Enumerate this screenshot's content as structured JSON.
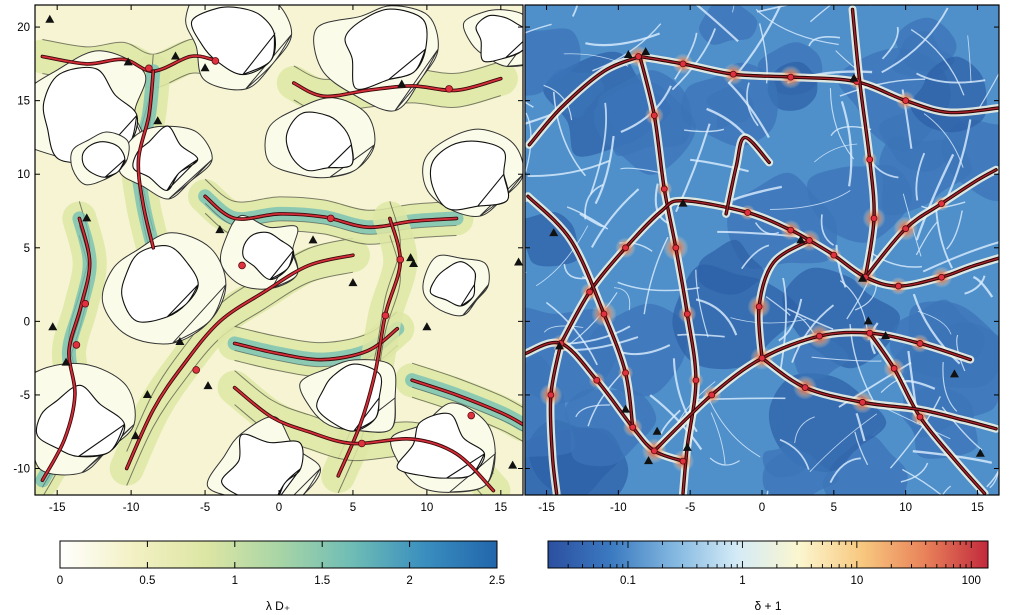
{
  "chart_data": [
    {
      "type": "heatmap",
      "panel": "left",
      "description_of_marks": "filled contour map of λD+ with black contour lines, red filament curves with red critical-point dots and black triangles",
      "xlim": [
        -16.5,
        16.5
      ],
      "ylim": [
        -11.8,
        21.5
      ],
      "x_ticks": [
        -15,
        -10,
        -5,
        0,
        5,
        10,
        15
      ],
      "y_ticks": [
        -10,
        -5,
        0,
        5,
        10,
        15,
        20
      ],
      "colorbar": {
        "label": "λ D₊",
        "scale": "linear",
        "range": [
          0,
          2.5
        ],
        "ticks": [
          0,
          0.5,
          1,
          1.5,
          2,
          2.5
        ],
        "colors": [
          "#ffffff",
          "#f3f1c4",
          "#dde6a4",
          "#a9d5a6",
          "#6fbdb5",
          "#3a8fbf",
          "#2166ac"
        ]
      },
      "filaments": [
        [
          [
            -16,
            -10.8
          ],
          [
            -14.5,
            -8
          ],
          [
            -13.8,
            -5
          ],
          [
            -14.2,
            -2
          ],
          [
            -13.4,
            1
          ],
          [
            -12.8,
            4
          ],
          [
            -13.5,
            7
          ]
        ],
        [
          [
            -16,
            18
          ],
          [
            -13,
            17.5
          ],
          [
            -10.5,
            17.8
          ],
          [
            -8.5,
            17
          ],
          [
            -6,
            18
          ],
          [
            -4.5,
            17.8
          ]
        ],
        [
          [
            -8.5,
            17
          ],
          [
            -8.8,
            14
          ],
          [
            -9.5,
            11
          ],
          [
            -9.2,
            8
          ],
          [
            -8.5,
            5
          ]
        ],
        [
          [
            -10.3,
            -10
          ],
          [
            -8.5,
            -6
          ],
          [
            -6.5,
            -3
          ],
          [
            -4,
            0
          ],
          [
            -1,
            2
          ],
          [
            2,
            3.8
          ],
          [
            5,
            4.5
          ]
        ],
        [
          [
            -5,
            8.5
          ],
          [
            -3,
            7
          ],
          [
            0,
            7.3
          ],
          [
            3,
            7.1
          ],
          [
            6,
            6.4
          ],
          [
            9,
            6.8
          ],
          [
            12,
            7
          ]
        ],
        [
          [
            1,
            16.2
          ],
          [
            3,
            15.3
          ],
          [
            6,
            15.7
          ],
          [
            9,
            16
          ],
          [
            12,
            15.7
          ],
          [
            15,
            16.5
          ]
        ],
        [
          [
            -3,
            -1.5
          ],
          [
            0,
            -2.2
          ],
          [
            3,
            -2.6
          ],
          [
            6,
            -2
          ],
          [
            8,
            -0.5
          ]
        ],
        [
          [
            4,
            -10.5
          ],
          [
            5.5,
            -7
          ],
          [
            6.5,
            -3.5
          ],
          [
            7.2,
            0.5
          ],
          [
            8.2,
            4
          ],
          [
            7.5,
            7
          ]
        ],
        [
          [
            9,
            -4
          ],
          [
            12,
            -5
          ],
          [
            15,
            -6.2
          ],
          [
            16.5,
            -7
          ]
        ],
        [
          [
            -3,
            -4.5
          ],
          [
            -0.5,
            -6.5
          ],
          [
            2,
            -7.5
          ],
          [
            5,
            -8.3
          ],
          [
            9,
            -8
          ],
          [
            12,
            -9
          ],
          [
            14.5,
            -11.5
          ]
        ]
      ],
      "critical_points": [
        [
          -13.1,
          1.2
        ],
        [
          -13.7,
          -1.6
        ],
        [
          -8.8,
          17.2
        ],
        [
          -4.3,
          17.7
        ],
        [
          -5.6,
          -3.3
        ],
        [
          -2.5,
          3.8
        ],
        [
          3.5,
          7.0
        ],
        [
          7.2,
          0.4
        ],
        [
          8.2,
          4.2
        ],
        [
          11.5,
          15.8
        ],
        [
          5.6,
          -8.3
        ],
        [
          13.0,
          -6.4
        ]
      ],
      "triangles": [
        [
          -15.5,
          20.5
        ],
        [
          -10.2,
          17.6
        ],
        [
          -7.0,
          18.0
        ],
        [
          -5.0,
          17.2
        ],
        [
          -8.2,
          13.6
        ],
        [
          -13.0,
          7.0
        ],
        [
          -15.3,
          -0.4
        ],
        [
          -14.4,
          -2.8
        ],
        [
          -9.7,
          -7.8
        ],
        [
          -6.7,
          -1.4
        ],
        [
          -4.8,
          -4.4
        ],
        [
          -4.0,
          6.2
        ],
        [
          2.3,
          5.5
        ],
        [
          5.0,
          2.6
        ],
        [
          8.9,
          4.3
        ],
        [
          10.0,
          -0.4
        ],
        [
          8.3,
          16.1
        ],
        [
          16.2,
          4.0
        ],
        [
          15.8,
          -9.8
        ],
        [
          9.1,
          3.9
        ],
        [
          -8.9,
          -5.0
        ]
      ]
    },
    {
      "type": "heatmap",
      "panel": "right",
      "description_of_marks": "density field δ+1 (blue voids, white walls, red filament nodes) with red-outlined filament curves, dots and black triangles",
      "xlim": [
        -16.5,
        16.5
      ],
      "ylim": [
        -11.8,
        21.5
      ],
      "x_ticks": [
        -15,
        -10,
        -5,
        0,
        5,
        10,
        15
      ],
      "y_ticks": [
        -10,
        -5,
        0,
        5,
        10,
        15,
        20
      ],
      "colorbar": {
        "label": "δ + 1",
        "scale": "log",
        "range": [
          0.02,
          140
        ],
        "ticks": [
          0.1,
          1,
          10,
          100
        ],
        "tick_labels": [
          "0.1",
          "1",
          "10",
          "100"
        ],
        "colors": [
          "#2c4fa0",
          "#3b7ac0",
          "#82b7e0",
          "#d4ebf7",
          "#fbf6cf",
          "#f8c87f",
          "#e9825a",
          "#c2293c"
        ]
      },
      "filaments": [
        [
          [
            -16.2,
            12
          ],
          [
            -14,
            14.5
          ],
          [
            -11,
            17
          ],
          [
            -8.5,
            18
          ]
        ],
        [
          [
            -8.5,
            18
          ],
          [
            -5.5,
            17.5
          ],
          [
            -2,
            16.8
          ],
          [
            2,
            16.6
          ],
          [
            6.5,
            16.3
          ],
          [
            10,
            15
          ],
          [
            13,
            14.2
          ],
          [
            16.5,
            14.5
          ]
        ],
        [
          [
            -8.5,
            18
          ],
          [
            -7.5,
            14
          ],
          [
            -6.8,
            9
          ],
          [
            -6,
            5
          ],
          [
            -5.2,
            0.5
          ],
          [
            -4.6,
            -4
          ],
          [
            -5.2,
            -8.5
          ],
          [
            -5.5,
            -11.7
          ]
        ],
        [
          [
            -14,
            -1.5
          ],
          [
            -12,
            2
          ],
          [
            -9.5,
            5
          ],
          [
            -7,
            7.5
          ],
          [
            -5.5,
            8.2
          ],
          [
            -1,
            7.4
          ],
          [
            2,
            6.2
          ],
          [
            3.3,
            5.5
          ]
        ],
        [
          [
            3.3,
            5.5
          ],
          [
            5,
            4.5
          ],
          [
            7.2,
            3
          ],
          [
            9.5,
            2.4
          ],
          [
            12.5,
            3
          ],
          [
            14.5,
            3.7
          ],
          [
            16.5,
            4.3
          ]
        ],
        [
          [
            7.2,
            3
          ],
          [
            7.8,
            7
          ],
          [
            7.5,
            11
          ],
          [
            6.8,
            16.3
          ],
          [
            6.3,
            21.2
          ]
        ],
        [
          [
            -16.5,
            -2.2
          ],
          [
            -14,
            -1.5
          ],
          [
            -11.5,
            -4
          ],
          [
            -9,
            -7.2
          ],
          [
            -7.5,
            -8.8
          ],
          [
            -5.5,
            -9.5
          ]
        ],
        [
          [
            -14,
            -1.5
          ],
          [
            -14.7,
            -5
          ],
          [
            -14.6,
            -9
          ],
          [
            -14.3,
            -11.7
          ]
        ],
        [
          [
            -7.5,
            -8.8
          ],
          [
            -3.5,
            -5
          ],
          [
            0,
            -2.5
          ],
          [
            4,
            -1
          ],
          [
            7.5,
            -0.8
          ],
          [
            11,
            -1.5
          ],
          [
            14.5,
            -2.6
          ]
        ],
        [
          [
            0,
            -2.5
          ],
          [
            -0.2,
            1
          ],
          [
            0.8,
            4
          ],
          [
            3.3,
            5.5
          ]
        ],
        [
          [
            -9,
            -7.2
          ],
          [
            -9.5,
            -3.5
          ],
          [
            -11,
            0.5
          ],
          [
            -13.3,
            5.5
          ],
          [
            -16.3,
            8.5
          ]
        ],
        [
          [
            7.5,
            -0.8
          ],
          [
            9.2,
            -3.2
          ],
          [
            11,
            -6.5
          ],
          [
            13.5,
            -9.5
          ],
          [
            15.5,
            -11.7
          ]
        ],
        [
          [
            0,
            -2.5
          ],
          [
            3,
            -4.5
          ],
          [
            7,
            -5.5
          ],
          [
            11,
            -6
          ],
          [
            14,
            -6.7
          ],
          [
            16.3,
            -7.3
          ]
        ],
        [
          [
            7.2,
            3
          ],
          [
            10,
            6.3
          ],
          [
            12.5,
            8
          ],
          [
            15,
            9.6
          ],
          [
            16.3,
            10.3
          ]
        ],
        [
          [
            -2.5,
            7.3
          ],
          [
            -1.8,
            10.5
          ],
          [
            -1.2,
            12.5
          ],
          [
            0.5,
            10.8
          ]
        ]
      ],
      "critical_points": [
        [
          -8.6,
          18.0
        ],
        [
          -5.5,
          17.5
        ],
        [
          -2.0,
          16.8
        ],
        [
          2.0,
          16.6
        ],
        [
          6.6,
          16.3
        ],
        [
          10.0,
          15.0
        ],
        [
          -7.5,
          14.0
        ],
        [
          -6.8,
          9.0
        ],
        [
          -6.0,
          5.0
        ],
        [
          -12.0,
          2.0
        ],
        [
          -9.5,
          5.0
        ],
        [
          -1.0,
          7.4
        ],
        [
          2.0,
          6.2
        ],
        [
          3.3,
          5.5
        ],
        [
          5.0,
          4.5
        ],
        [
          7.2,
          3.0
        ],
        [
          9.5,
          2.4
        ],
        [
          12.5,
          3.0
        ],
        [
          7.8,
          7.0
        ],
        [
          7.5,
          11.0
        ],
        [
          -14.0,
          -1.5
        ],
        [
          -11.5,
          -4.0
        ],
        [
          -9.0,
          -7.2
        ],
        [
          -7.5,
          -8.8
        ],
        [
          -5.5,
          -9.5
        ],
        [
          -14.7,
          -5.0
        ],
        [
          -3.5,
          -5.0
        ],
        [
          0.0,
          -2.5
        ],
        [
          4.0,
          -1.0
        ],
        [
          7.5,
          -0.8
        ],
        [
          11.0,
          -1.5
        ],
        [
          -0.2,
          1.0
        ],
        [
          -9.5,
          -3.5
        ],
        [
          -11.0,
          0.5
        ],
        [
          9.2,
          -3.2
        ],
        [
          11.0,
          -6.5
        ],
        [
          3.0,
          -4.5
        ],
        [
          7.0,
          -5.5
        ],
        [
          10.0,
          6.3
        ],
        [
          12.5,
          8.0
        ],
        [
          -4.6,
          -4.0
        ],
        [
          -5.2,
          0.5
        ]
      ],
      "triangles": [
        [
          -9.3,
          18.1
        ],
        [
          -8.1,
          18.3
        ],
        [
          6.4,
          16.5
        ],
        [
          -5.5,
          8.0
        ],
        [
          -14.5,
          6.0
        ],
        [
          -14.1,
          -1.7
        ],
        [
          2.7,
          5.5
        ],
        [
          7.0,
          2.9
        ],
        [
          7.4,
          0.0
        ],
        [
          8.6,
          -1.0
        ],
        [
          13.4,
          -3.6
        ],
        [
          -9.5,
          -6.0
        ],
        [
          -7.3,
          -7.5
        ],
        [
          -5.2,
          -8.6
        ],
        [
          15.2,
          -9.0
        ],
        [
          -7.9,
          -9.5
        ]
      ]
    }
  ]
}
